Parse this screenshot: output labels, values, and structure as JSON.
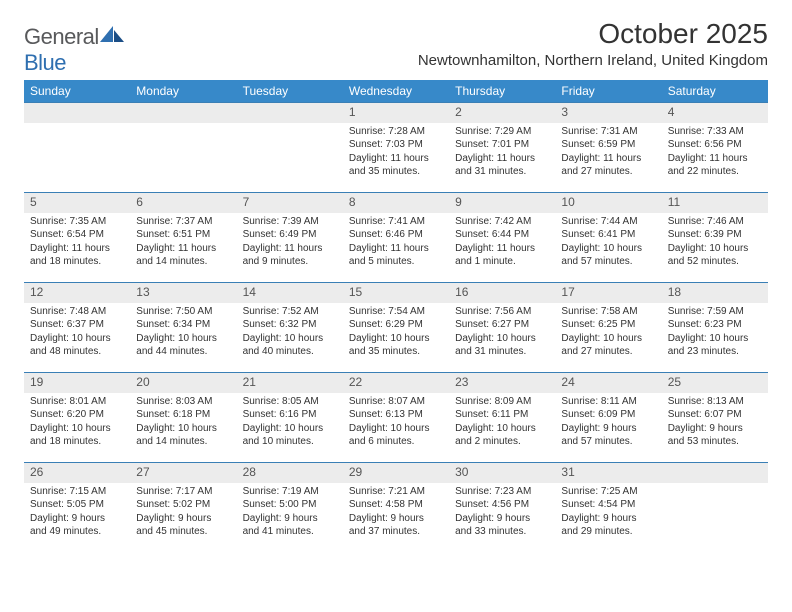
{
  "brand": {
    "part1": "General",
    "part2": "Blue"
  },
  "title": "October 2025",
  "location": "Newtownhamilton, Northern Ireland, United Kingdom",
  "colors": {
    "header_bg": "#3789c9",
    "header_text": "#ffffff",
    "row_divider": "#3a7fb5",
    "daynum_bg": "#ececec",
    "text": "#333333",
    "logo_gray": "#58595b",
    "logo_blue": "#2f6fb0"
  },
  "day_headers": [
    "Sunday",
    "Monday",
    "Tuesday",
    "Wednesday",
    "Thursday",
    "Friday",
    "Saturday"
  ],
  "weeks": [
    [
      {
        "n": "",
        "sunrise": "",
        "sunset": "",
        "daylight": ""
      },
      {
        "n": "",
        "sunrise": "",
        "sunset": "",
        "daylight": ""
      },
      {
        "n": "",
        "sunrise": "",
        "sunset": "",
        "daylight": ""
      },
      {
        "n": "1",
        "sunrise": "Sunrise: 7:28 AM",
        "sunset": "Sunset: 7:03 PM",
        "daylight": "Daylight: 11 hours and 35 minutes."
      },
      {
        "n": "2",
        "sunrise": "Sunrise: 7:29 AM",
        "sunset": "Sunset: 7:01 PM",
        "daylight": "Daylight: 11 hours and 31 minutes."
      },
      {
        "n": "3",
        "sunrise": "Sunrise: 7:31 AM",
        "sunset": "Sunset: 6:59 PM",
        "daylight": "Daylight: 11 hours and 27 minutes."
      },
      {
        "n": "4",
        "sunrise": "Sunrise: 7:33 AM",
        "sunset": "Sunset: 6:56 PM",
        "daylight": "Daylight: 11 hours and 22 minutes."
      }
    ],
    [
      {
        "n": "5",
        "sunrise": "Sunrise: 7:35 AM",
        "sunset": "Sunset: 6:54 PM",
        "daylight": "Daylight: 11 hours and 18 minutes."
      },
      {
        "n": "6",
        "sunrise": "Sunrise: 7:37 AM",
        "sunset": "Sunset: 6:51 PM",
        "daylight": "Daylight: 11 hours and 14 minutes."
      },
      {
        "n": "7",
        "sunrise": "Sunrise: 7:39 AM",
        "sunset": "Sunset: 6:49 PM",
        "daylight": "Daylight: 11 hours and 9 minutes."
      },
      {
        "n": "8",
        "sunrise": "Sunrise: 7:41 AM",
        "sunset": "Sunset: 6:46 PM",
        "daylight": "Daylight: 11 hours and 5 minutes."
      },
      {
        "n": "9",
        "sunrise": "Sunrise: 7:42 AM",
        "sunset": "Sunset: 6:44 PM",
        "daylight": "Daylight: 11 hours and 1 minute."
      },
      {
        "n": "10",
        "sunrise": "Sunrise: 7:44 AM",
        "sunset": "Sunset: 6:41 PM",
        "daylight": "Daylight: 10 hours and 57 minutes."
      },
      {
        "n": "11",
        "sunrise": "Sunrise: 7:46 AM",
        "sunset": "Sunset: 6:39 PM",
        "daylight": "Daylight: 10 hours and 52 minutes."
      }
    ],
    [
      {
        "n": "12",
        "sunrise": "Sunrise: 7:48 AM",
        "sunset": "Sunset: 6:37 PM",
        "daylight": "Daylight: 10 hours and 48 minutes."
      },
      {
        "n": "13",
        "sunrise": "Sunrise: 7:50 AM",
        "sunset": "Sunset: 6:34 PM",
        "daylight": "Daylight: 10 hours and 44 minutes."
      },
      {
        "n": "14",
        "sunrise": "Sunrise: 7:52 AM",
        "sunset": "Sunset: 6:32 PM",
        "daylight": "Daylight: 10 hours and 40 minutes."
      },
      {
        "n": "15",
        "sunrise": "Sunrise: 7:54 AM",
        "sunset": "Sunset: 6:29 PM",
        "daylight": "Daylight: 10 hours and 35 minutes."
      },
      {
        "n": "16",
        "sunrise": "Sunrise: 7:56 AM",
        "sunset": "Sunset: 6:27 PM",
        "daylight": "Daylight: 10 hours and 31 minutes."
      },
      {
        "n": "17",
        "sunrise": "Sunrise: 7:58 AM",
        "sunset": "Sunset: 6:25 PM",
        "daylight": "Daylight: 10 hours and 27 minutes."
      },
      {
        "n": "18",
        "sunrise": "Sunrise: 7:59 AM",
        "sunset": "Sunset: 6:23 PM",
        "daylight": "Daylight: 10 hours and 23 minutes."
      }
    ],
    [
      {
        "n": "19",
        "sunrise": "Sunrise: 8:01 AM",
        "sunset": "Sunset: 6:20 PM",
        "daylight": "Daylight: 10 hours and 18 minutes."
      },
      {
        "n": "20",
        "sunrise": "Sunrise: 8:03 AM",
        "sunset": "Sunset: 6:18 PM",
        "daylight": "Daylight: 10 hours and 14 minutes."
      },
      {
        "n": "21",
        "sunrise": "Sunrise: 8:05 AM",
        "sunset": "Sunset: 6:16 PM",
        "daylight": "Daylight: 10 hours and 10 minutes."
      },
      {
        "n": "22",
        "sunrise": "Sunrise: 8:07 AM",
        "sunset": "Sunset: 6:13 PM",
        "daylight": "Daylight: 10 hours and 6 minutes."
      },
      {
        "n": "23",
        "sunrise": "Sunrise: 8:09 AM",
        "sunset": "Sunset: 6:11 PM",
        "daylight": "Daylight: 10 hours and 2 minutes."
      },
      {
        "n": "24",
        "sunrise": "Sunrise: 8:11 AM",
        "sunset": "Sunset: 6:09 PM",
        "daylight": "Daylight: 9 hours and 57 minutes."
      },
      {
        "n": "25",
        "sunrise": "Sunrise: 8:13 AM",
        "sunset": "Sunset: 6:07 PM",
        "daylight": "Daylight: 9 hours and 53 minutes."
      }
    ],
    [
      {
        "n": "26",
        "sunrise": "Sunrise: 7:15 AM",
        "sunset": "Sunset: 5:05 PM",
        "daylight": "Daylight: 9 hours and 49 minutes."
      },
      {
        "n": "27",
        "sunrise": "Sunrise: 7:17 AM",
        "sunset": "Sunset: 5:02 PM",
        "daylight": "Daylight: 9 hours and 45 minutes."
      },
      {
        "n": "28",
        "sunrise": "Sunrise: 7:19 AM",
        "sunset": "Sunset: 5:00 PM",
        "daylight": "Daylight: 9 hours and 41 minutes."
      },
      {
        "n": "29",
        "sunrise": "Sunrise: 7:21 AM",
        "sunset": "Sunset: 4:58 PM",
        "daylight": "Daylight: 9 hours and 37 minutes."
      },
      {
        "n": "30",
        "sunrise": "Sunrise: 7:23 AM",
        "sunset": "Sunset: 4:56 PM",
        "daylight": "Daylight: 9 hours and 33 minutes."
      },
      {
        "n": "31",
        "sunrise": "Sunrise: 7:25 AM",
        "sunset": "Sunset: 4:54 PM",
        "daylight": "Daylight: 9 hours and 29 minutes."
      },
      {
        "n": "",
        "sunrise": "",
        "sunset": "",
        "daylight": ""
      }
    ]
  ]
}
